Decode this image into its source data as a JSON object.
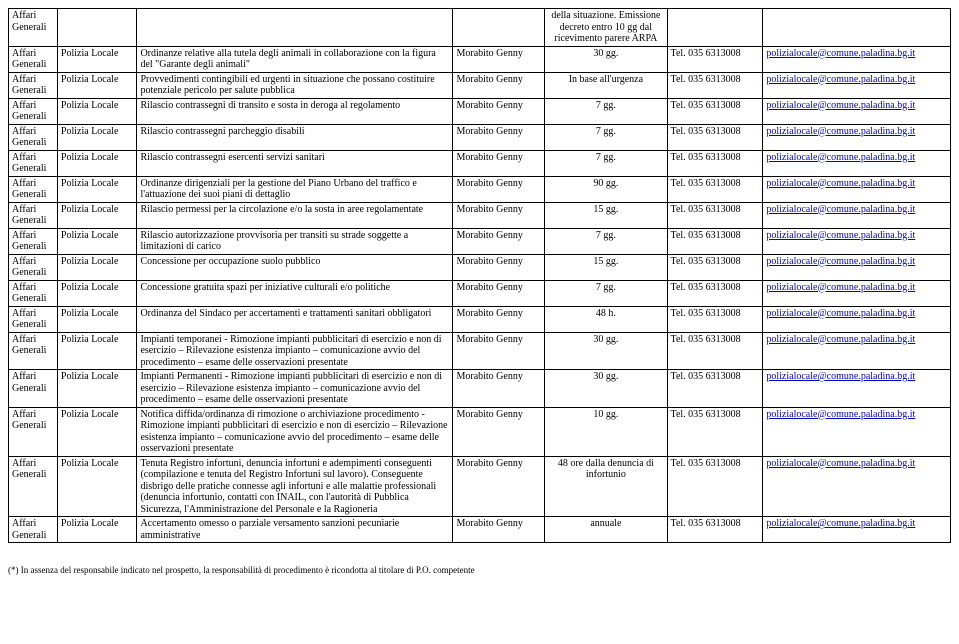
{
  "email": "polizialocale@comune.paladina.bg.it",
  "tel": "Tel. 035 6313008",
  "dept": "Affari Generali",
  "office": "Polizia Locale",
  "person": "Morabito Genny",
  "header_note": "della situazione. Emissione decreto entro 10 gg dal ricevimento parere ARPA",
  "rows": [
    {
      "desc": "Ordinanze relative alla tutela degli animali in collaborazione con la figura del \"Garante degli animali\"",
      "time": "30 gg."
    },
    {
      "desc": "Provvedimenti contingibili ed urgenti in situazione che possano costituire potenziale pericolo per salute pubblica",
      "time": "In base all'urgenza"
    },
    {
      "desc": "Rilascio contrassegni di transito e sosta in deroga al regolamento",
      "time": "7 gg."
    },
    {
      "desc": "Rilascio contrassegni parcheggio disabili",
      "time": "7 gg."
    },
    {
      "desc": "Rilascio contrassegni esercenti servizi sanitari",
      "time": "7 gg."
    },
    {
      "desc": "Ordinanze dirigenziali per la gestione del Piano Urbano del traffico e l'attuazione dei suoi piani di dettaglio",
      "time": "90 gg."
    },
    {
      "desc": "Rilascio permessi per la circolazione e/o la sosta in aree regolamentate",
      "time": "15 gg."
    },
    {
      "desc": "Rilascio autorizzazione provvisoria per transiti su strade soggette a limitazioni di carico",
      "time": "7 gg."
    },
    {
      "desc": "Concessione per occupazione suolo pubblico",
      "time": "15 gg."
    },
    {
      "desc": "Concessione gratuita spazi per iniziative culturali e/o politiche",
      "time": "7 gg."
    },
    {
      "desc": "Ordinanza del Sindaco per accertamenti e trattamenti sanitari obbligatori",
      "time": "48 h."
    },
    {
      "desc": "Impianti temporanei - Rimozione impianti pubblicitari di esercizio e non di esercizio – Rilevazione esistenza impianto – comunicazione avvio del procedimento – esame delle osservazioni presentate",
      "time": "30 gg."
    },
    {
      "desc": "Impianti Permanenti - Rimozione impianti pubblicitari di esercizio e non di esercizio – Rilevazione esistenza impianto – comunicazione avvio del procedimento – esame delle osservazioni presentate",
      "time": "30 gg."
    },
    {
      "desc": "Notifica diffida/ordinanza di rimozione o archiviazione procedimento -Rimozione impianti pubblicitari di esercizio e non di esercizio – Rilevazione esistenza impianto – comunicazione avvio del procedimento – esame delle osservazioni presentate",
      "time": "10 gg."
    },
    {
      "desc": "Tenuta Registro infortuni, denuncia infortuni e adempimenti conseguenti (compilazione e tenuta del Registro Infortuni sul lavoro). Conseguente disbrigo delle pratiche connesse agli infortuni e alle malattie professionali (denuncia infortunio, contatti con INAIL, con l'autorità di Pubblica Sicurezza, l'Amministrazione del Personale e la Ragioneria",
      "time": "48 ore dalla denuncia di infortunio"
    },
    {
      "desc": "Accertamento omesso o parziale versamento sanzioni pecuniarie amministrative",
      "time": "annuale"
    }
  ],
  "footer": "(*) In assenza del responsabile indicato nel prospetto, la responsabilità di procedimento è ricondotta al titolare di P.O. competente"
}
